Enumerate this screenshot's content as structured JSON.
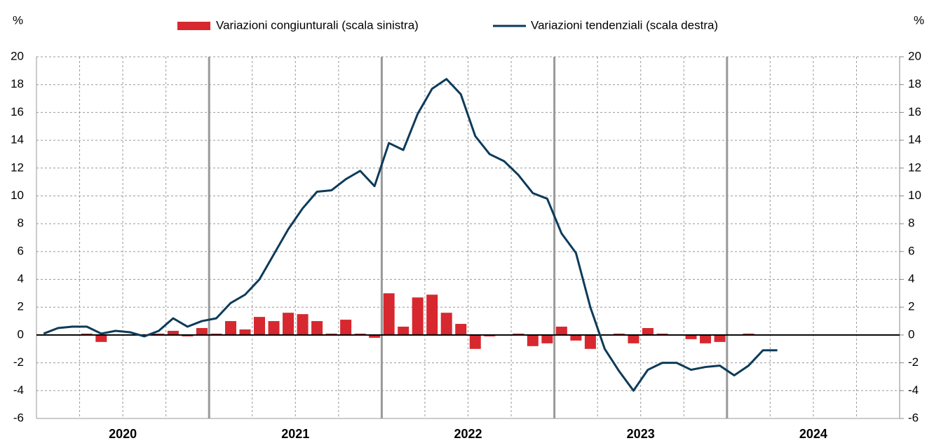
{
  "chart_data": {
    "type": "bar_line",
    "y_unit_left": "%",
    "y_unit_right": "%",
    "year_labels": [
      "2020",
      "2021",
      "2022",
      "2023",
      "2024"
    ],
    "xlim": [
      0,
      60
    ],
    "categories": [
      null,
      null,
      null,
      null,
      null,
      null,
      null,
      null,
      null,
      null,
      null,
      null,
      null,
      null,
      null,
      null,
      null,
      null,
      null,
      null,
      null,
      null,
      null,
      null,
      null,
      null,
      null,
      null,
      null,
      null,
      null,
      null,
      null,
      null,
      null,
      null,
      null,
      null,
      null,
      null,
      null,
      null,
      null,
      null,
      null,
      null,
      null,
      null,
      null,
      null,
      null,
      null
    ],
    "ylim": [
      -6,
      20
    ],
    "yticks": [
      -6,
      -4,
      -2,
      0,
      2,
      4,
      6,
      8,
      10,
      12,
      14,
      16,
      18,
      20
    ],
    "y2lim": [
      -6,
      20
    ],
    "y2ticks": [
      -6,
      -4,
      -2,
      0,
      2,
      4,
      6,
      8,
      10,
      12,
      14,
      16,
      18,
      20
    ],
    "grid": true,
    "series": [
      {
        "name": "Variazioni congiunturali (scala sinistra)",
        "type": "bar",
        "color": "#d7282f",
        "values": [
          0,
          0,
          0,
          0.1,
          -0.5,
          0,
          0,
          0,
          0.1,
          0.3,
          -0.1,
          0.5,
          0.1,
          1.0,
          0.4,
          1.3,
          1.0,
          1.6,
          1.5,
          1.0,
          0.1,
          1.1,
          0.1,
          -0.2,
          3.0,
          0.6,
          2.7,
          2.9,
          1.6,
          0.8,
          -1.0,
          -0.1,
          0,
          0.1,
          -0.8,
          -0.6,
          0.6,
          -0.4,
          -1.0,
          0,
          0.1,
          -0.6,
          0.5,
          0.1,
          0,
          -0.3,
          -0.6,
          -0.5,
          0,
          0.1,
          0,
          null
        ]
      },
      {
        "name": "Variazioni tendenziali (scala destra)",
        "type": "line",
        "axis": "y2",
        "color": "#0d3b5a",
        "values": [
          0.1,
          0.5,
          0.6,
          0.6,
          0.1,
          0.3,
          0.2,
          -0.1,
          0.3,
          1.2,
          0.6,
          1.0,
          1.2,
          2.3,
          2.9,
          4.0,
          5.8,
          7.6,
          9.1,
          10.3,
          10.4,
          11.2,
          11.8,
          10.7,
          13.8,
          13.3,
          15.9,
          17.7,
          18.4,
          17.3,
          14.3,
          13.0,
          12.5,
          11.5,
          10.2,
          9.8,
          7.3,
          5.9,
          2.0,
          -1.0,
          -2.6,
          -4.0,
          -2.5,
          -2.0,
          -2.0,
          -2.5,
          -2.3,
          -2.2,
          -2.9,
          -2.2,
          -1.1,
          -1.1
        ]
      }
    ]
  }
}
